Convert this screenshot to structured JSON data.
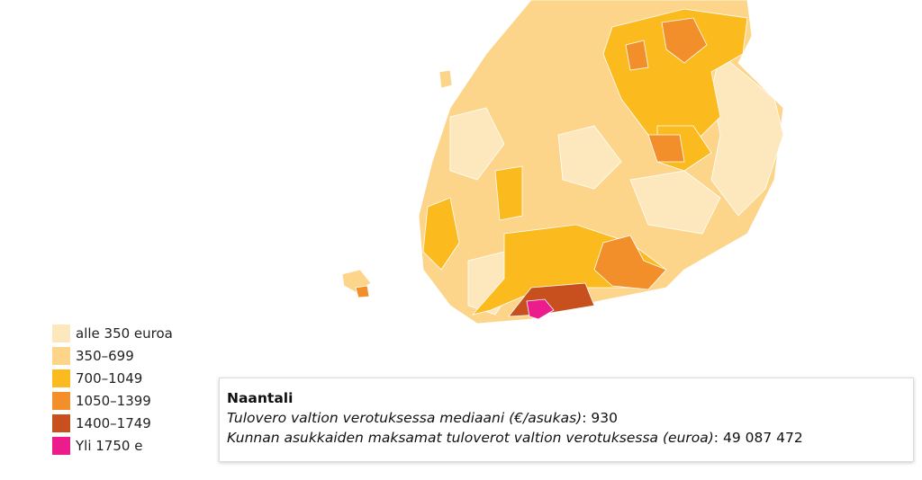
{
  "legend": {
    "items": [
      {
        "label": "alle 350 euroa",
        "color": "#fde8bd"
      },
      {
        "label": "350–699",
        "color": "#fcd58a"
      },
      {
        "label": "700–1049",
        "color": "#fbba1e"
      },
      {
        "label": "1050–1399",
        "color": "#f28f2a"
      },
      {
        "label": "1400–1749",
        "color": "#c8501f"
      },
      {
        "label": "Yli 1750 e",
        "color": "#ec1c8c"
      }
    ]
  },
  "tooltip": {
    "title": "Naantali",
    "separator": ":",
    "rows": [
      {
        "label": "Tulovero valtion verotuksessa mediaani (€/asukas)",
        "value": "930"
      },
      {
        "label": "Kunnan asukkaiden maksamat tuloverot valtion verotuksessa (euroa)",
        "value": "49 087 472"
      }
    ]
  }
}
